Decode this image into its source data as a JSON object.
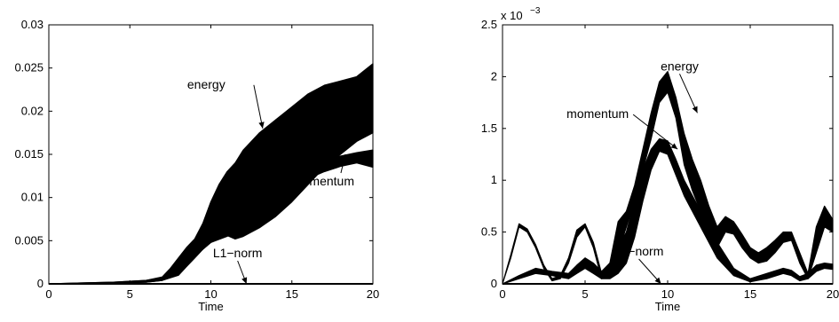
{
  "chart_data": [
    {
      "type": "line",
      "xlabel": "Time",
      "ylabel": "",
      "xlim": [
        0,
        20
      ],
      "ylim": [
        0,
        0.03
      ],
      "xticks": [
        "0",
        "5",
        "10",
        "15",
        "20"
      ],
      "yticks": [
        "0",
        "0.005",
        "0.01",
        "0.015",
        "0.02",
        "0.025",
        "0.03"
      ],
      "grid": false,
      "series": [
        {
          "name": "energy",
          "style": "band",
          "x": [
            0,
            2,
            4,
            6,
            7,
            7.5,
            8,
            8.5,
            9,
            9.5,
            10,
            10.5,
            11,
            11.5,
            12,
            13,
            14,
            15,
            16,
            17,
            18,
            19,
            20
          ],
          "lower": [
            0,
            0,
            0.0001,
            0.0002,
            0.0004,
            0.0008,
            0.0015,
            0.0025,
            0.0033,
            0.004,
            0.0048,
            0.0053,
            0.0056,
            0.0052,
            0.0055,
            0.0065,
            0.0078,
            0.0095,
            0.0115,
            0.0135,
            0.015,
            0.0165,
            0.0175
          ],
          "upper": [
            0,
            0.0001,
            0.0002,
            0.0004,
            0.0008,
            0.0018,
            0.003,
            0.0042,
            0.0052,
            0.007,
            0.0095,
            0.0115,
            0.013,
            0.014,
            0.0155,
            0.0175,
            0.019,
            0.0205,
            0.022,
            0.023,
            0.0235,
            0.024,
            0.0255
          ]
        },
        {
          "name": "momentum",
          "style": "band",
          "x": [
            0,
            2,
            4,
            6,
            7,
            8,
            8.5,
            9,
            9.5,
            10,
            11,
            12,
            13,
            14,
            15,
            16,
            17,
            18,
            19,
            20
          ],
          "lower": [
            0,
            0,
            0.0001,
            0.0002,
            0.0004,
            0.001,
            0.002,
            0.003,
            0.004,
            0.0048,
            0.0055,
            0.0065,
            0.008,
            0.0095,
            0.011,
            0.0122,
            0.013,
            0.0136,
            0.014,
            0.0135
          ],
          "upper": [
            0,
            0.0001,
            0.0002,
            0.0004,
            0.0007,
            0.0014,
            0.0025,
            0.0037,
            0.0048,
            0.0058,
            0.0068,
            0.008,
            0.0095,
            0.011,
            0.0125,
            0.0135,
            0.0143,
            0.0148,
            0.0152,
            0.0155
          ]
        },
        {
          "name": "L1-norm",
          "style": "line",
          "x": [
            0,
            20
          ],
          "y": [
            0,
            0
          ]
        }
      ],
      "annotations": [
        {
          "text": "energy",
          "target_x": 13.2,
          "target_y": 0.018
        },
        {
          "text": "momentum",
          "target_x": 18.3,
          "target_y": 0.015
        },
        {
          "text": "L1−norm",
          "target_x": 12.2,
          "target_y": 0.0
        }
      ]
    },
    {
      "type": "line",
      "xlabel": "Time",
      "ylabel": "",
      "xlim": [
        0,
        20
      ],
      "ylim": [
        0,
        2.5
      ],
      "y_exponent": "x 10",
      "y_exponent_power": "−3",
      "xticks": [
        "0",
        "5",
        "10",
        "15",
        "20"
      ],
      "yticks": [
        "0",
        "0.5",
        "1",
        "1.5",
        "2",
        "2.5"
      ],
      "grid": false,
      "series": [
        {
          "name": "energy",
          "style": "band",
          "x": [
            0,
            0.5,
            1,
            1.5,
            2,
            2.5,
            3,
            3.5,
            4,
            4.5,
            5,
            5.5,
            6,
            6.5,
            7,
            7.5,
            8,
            8.5,
            9,
            9.5,
            10,
            10.5,
            11,
            11.5,
            12,
            12.5,
            13,
            13.5,
            14,
            14.5,
            15,
            15.5,
            16,
            16.5,
            17,
            17.5,
            18,
            18.5,
            19,
            19.5,
            20
          ],
          "lower": [
            0,
            0.25,
            0.55,
            0.5,
            0.35,
            0.15,
            0.03,
            0.05,
            0.2,
            0.45,
            0.55,
            0.35,
            0.05,
            0.1,
            0.3,
            0.55,
            0.8,
            1.1,
            1.4,
            1.75,
            1.85,
            1.6,
            1.15,
            0.9,
            0.7,
            0.45,
            0.35,
            0.5,
            0.48,
            0.35,
            0.25,
            0.2,
            0.22,
            0.3,
            0.4,
            0.42,
            0.2,
            0.05,
            0.3,
            0.55,
            0.5
          ],
          "upper": [
            0,
            0.28,
            0.58,
            0.53,
            0.38,
            0.18,
            0.05,
            0.08,
            0.25,
            0.52,
            0.58,
            0.4,
            0.1,
            0.2,
            0.6,
            0.7,
            0.95,
            1.3,
            1.65,
            1.95,
            2.05,
            1.8,
            1.45,
            1.2,
            1.0,
            0.75,
            0.55,
            0.65,
            0.6,
            0.48,
            0.35,
            0.3,
            0.35,
            0.42,
            0.5,
            0.5,
            0.3,
            0.1,
            0.55,
            0.75,
            0.62
          ]
        },
        {
          "name": "momentum",
          "style": "band",
          "x": [
            0,
            1,
            2,
            3,
            4,
            4.5,
            5,
            5.5,
            6,
            6.5,
            7,
            7.5,
            8,
            8.5,
            9,
            9.5,
            10,
            10.5,
            11,
            12,
            13,
            14,
            15,
            16,
            17,
            17.5,
            18,
            18.5,
            19,
            19.5,
            20
          ],
          "lower": [
            0,
            0.05,
            0.1,
            0.08,
            0.05,
            0.1,
            0.15,
            0.1,
            0.05,
            0.05,
            0.1,
            0.2,
            0.45,
            0.8,
            1.1,
            1.28,
            1.25,
            1.05,
            0.85,
            0.55,
            0.25,
            0.08,
            0.02,
            0.05,
            0.1,
            0.08,
            0.03,
            0.05,
            0.12,
            0.15,
            0.14
          ],
          "upper": [
            0,
            0.08,
            0.15,
            0.12,
            0.1,
            0.18,
            0.25,
            0.2,
            0.12,
            0.2,
            0.35,
            0.5,
            0.8,
            1.1,
            1.3,
            1.4,
            1.38,
            1.2,
            1.0,
            0.7,
            0.4,
            0.15,
            0.05,
            0.1,
            0.15,
            0.13,
            0.07,
            0.1,
            0.18,
            0.2,
            0.19
          ]
        },
        {
          "name": "L1-norm",
          "style": "line",
          "x": [
            0,
            20
          ],
          "y": [
            0,
            0
          ]
        }
      ],
      "annotations": [
        {
          "text": "energy",
          "target_x": 11.8,
          "target_y": 1.65
        },
        {
          "text": "momentum",
          "target_x": 10.6,
          "target_y": 1.3
        },
        {
          "text": "L1−norm",
          "target_x": 9.6,
          "target_y": 0.0
        }
      ]
    }
  ]
}
